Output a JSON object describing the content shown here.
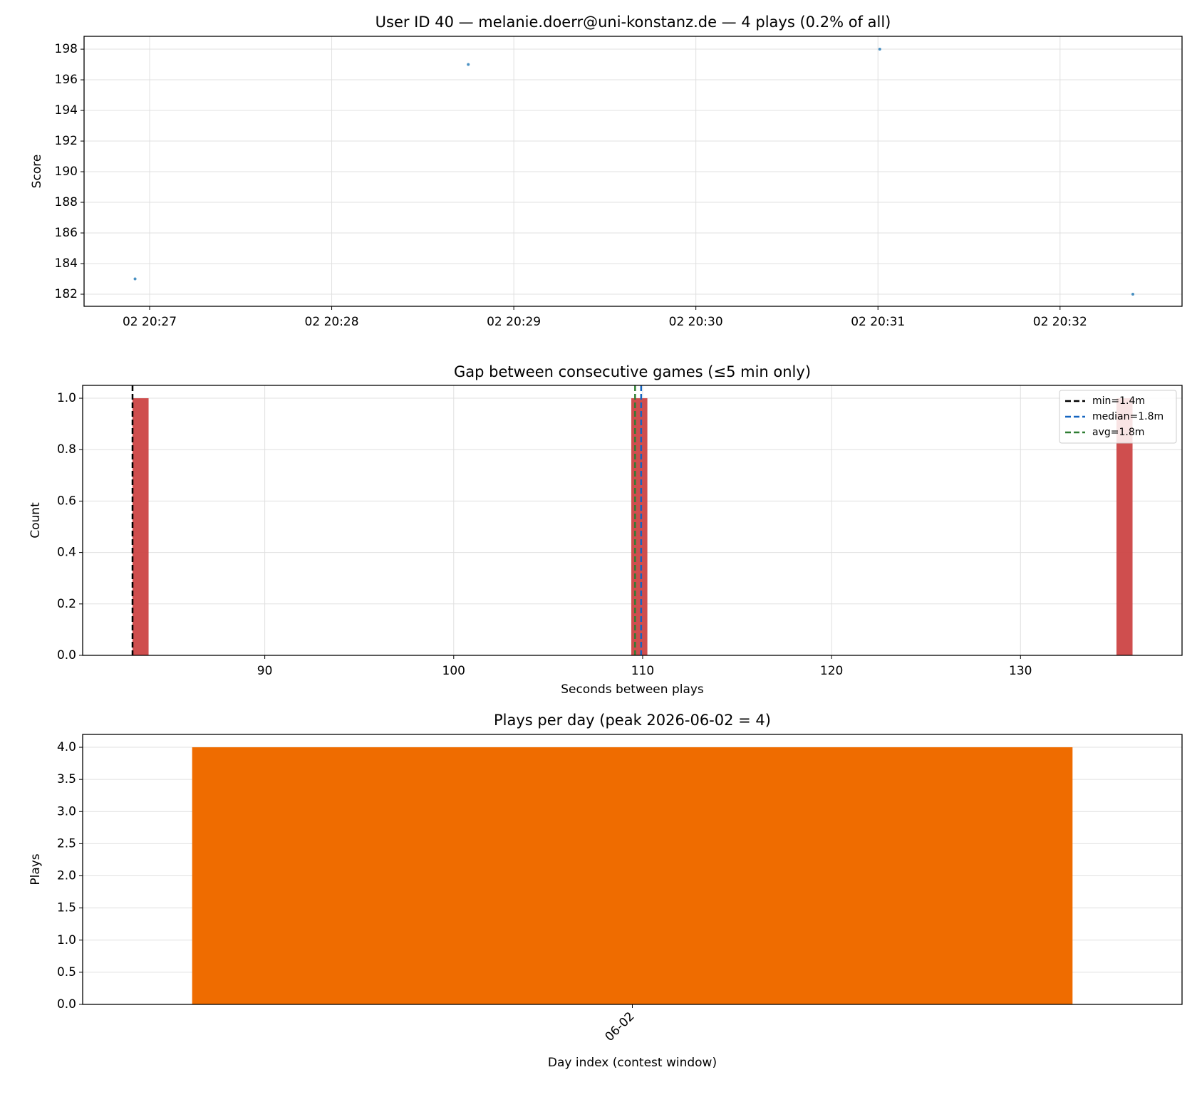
{
  "chart_data": [
    {
      "type": "scatter",
      "title": "User ID 40 — melanie.doerr@uni-konstanz.de — 4 plays (0.2% of all)",
      "y_label": "Score",
      "color": "#1f77b4",
      "x": [
        26.92,
        28.75,
        31.01,
        32.4
      ],
      "values": [
        183,
        197,
        198,
        182
      ],
      "xlim": [
        26.64,
        32.67
      ],
      "xticks": [
        {
          "value": 27,
          "label": "02 20:27"
        },
        {
          "value": 28,
          "label": "02 20:28"
        },
        {
          "value": 29,
          "label": "02 20:29"
        },
        {
          "value": 30,
          "label": "02 20:30"
        },
        {
          "value": 31,
          "label": "02 20:31"
        },
        {
          "value": 32,
          "label": "02 20:32"
        }
      ],
      "ylim": [
        181.21,
        198.84
      ],
      "yticks": [
        182,
        184,
        186,
        188,
        190,
        192,
        194,
        196,
        198
      ],
      "grid": true
    },
    {
      "type": "histogram",
      "title": "Gap between consecutive games (≤5 min only)",
      "x_label": "Seconds between plays",
      "y_label": "Count",
      "color": "#cc4444",
      "bins": [
        83,
        83.85,
        109.4,
        110.25,
        135.08,
        135.93
      ],
      "values": [
        1,
        0,
        1,
        0,
        1
      ],
      "vlines": [
        {
          "name": "min=1.4m",
          "value": 83,
          "color": "#000000"
        },
        {
          "name": "median=1.8m",
          "value": 109.92,
          "color": "#1565c0"
        },
        {
          "name": "avg=1.8m",
          "value": 109.6,
          "color": "#2e7d32"
        }
      ],
      "legend": "upper right",
      "xlim": [
        80.36,
        138.55
      ],
      "xticks": [
        90,
        100,
        110,
        120,
        130
      ],
      "ylim": [
        0,
        1.05
      ],
      "yticks": [
        {
          "value": 0,
          "label": "0.0"
        },
        0.2,
        0.4,
        0.6,
        0.8,
        {
          "value": 1,
          "label": "1.0"
        }
      ],
      "grid": true
    },
    {
      "type": "bar",
      "title": "Plays per day (peak 2026-06-02 = 4)",
      "x_label": "Day index (contest window)",
      "y_label": "Plays",
      "color": "#ef6c00",
      "categories": [
        "06-02"
      ],
      "values": [
        4
      ],
      "ylim": [
        0,
        4.2
      ],
      "yticks": [
        {
          "value": 0,
          "label": "0.0"
        },
        0.5,
        {
          "value": 1,
          "label": "1.0"
        },
        1.5,
        {
          "value": 2,
          "label": "2.0"
        },
        2.5,
        {
          "value": 3,
          "label": "3.0"
        },
        3.5,
        {
          "value": 4,
          "label": "4.0"
        }
      ],
      "grid": true
    }
  ]
}
